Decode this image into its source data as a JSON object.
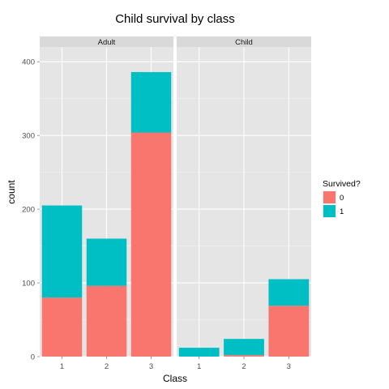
{
  "chart_data": {
    "type": "bar",
    "stacked": true,
    "title": "Child survival by class",
    "xlabel": "Class",
    "ylabel": "count",
    "ylim": [
      0,
      420
    ],
    "yticks": [
      0,
      100,
      200,
      300,
      400
    ],
    "categories": [
      "1",
      "2",
      "3"
    ],
    "grid": true,
    "legend_position": "right",
    "legend_title": "Survived?",
    "colors": {
      "0": "#F8766D",
      "1": "#00BFC4"
    },
    "panels": [
      {
        "label": "Adult",
        "series": [
          {
            "name": "0",
            "values": [
              80,
              96,
              304
            ]
          },
          {
            "name": "1",
            "values": [
              125,
              64,
              82
            ]
          }
        ]
      },
      {
        "label": "Child",
        "series": [
          {
            "name": "0",
            "values": [
              0,
              2,
              69
            ]
          },
          {
            "name": "1",
            "values": [
              12,
              22,
              36
            ]
          }
        ]
      }
    ]
  }
}
